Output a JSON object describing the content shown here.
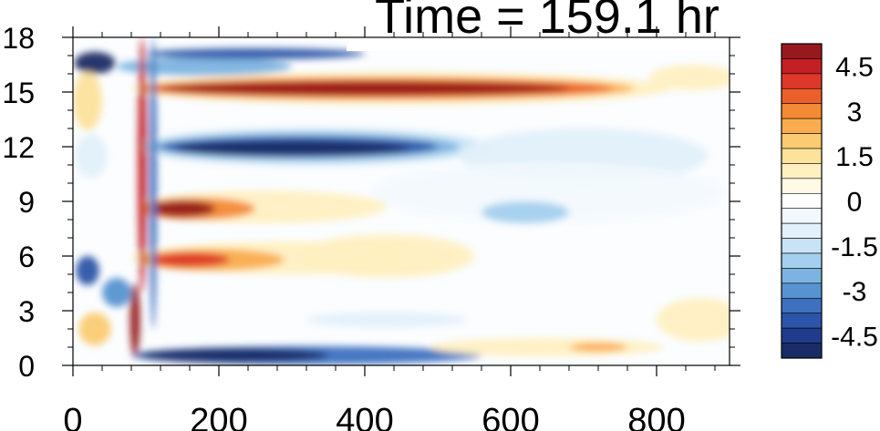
{
  "chart_data": {
    "type": "heatmap",
    "title": "Time = 159.1 hr",
    "xlabel": "",
    "ylabel": "",
    "xlim": [
      0,
      900
    ],
    "ylim": [
      0,
      18
    ],
    "x_ticks": [
      0,
      200,
      400,
      600,
      800
    ],
    "x_tick_labels": [
      "0",
      "200",
      "400",
      "600",
      "800"
    ],
    "y_ticks": [
      0,
      3,
      6,
      9,
      12,
      15,
      18
    ],
    "y_tick_labels": [
      "0",
      "3",
      "6",
      "9",
      "12",
      "15",
      "18"
    ],
    "grid": false,
    "legend": "right",
    "colorbar": {
      "min": -5.25,
      "max": 5.25,
      "levels": 21,
      "tick_values": [
        4.5,
        3,
        1.5,
        0,
        -1.5,
        -3,
        -4.5
      ],
      "tick_labels": [
        "4.5",
        "3",
        "1.5",
        "0",
        "-1.5",
        "-3",
        "-4.5"
      ],
      "colors": [
        "#1a2b66",
        "#203c8c",
        "#2c55a8",
        "#3d70bf",
        "#5793d0",
        "#7cb3e0",
        "#a3d0ee",
        "#c7e3f5",
        "#e1f0fa",
        "#f2f9fd",
        "#ffffff",
        "#fff9e6",
        "#fff0c2",
        "#fde29c",
        "#fbcb72",
        "#f9ad4e",
        "#f48a36",
        "#ec5f2c",
        "#dd3829",
        "#c31f25",
        "#961a1d"
      ]
    },
    "features": [
      {
        "name": "positive band near 15",
        "x0": 100,
        "x1": 800,
        "y": 15.2,
        "peak": 5.0
      },
      {
        "name": "negative band near 12",
        "x0": 100,
        "x1": 600,
        "y": 12.0,
        "peak": -5.0
      },
      {
        "name": "positive band near 9",
        "x0": 90,
        "x1": 420,
        "y": 8.6,
        "peak": 4.5
      },
      {
        "name": "positive band near 6",
        "x0": 90,
        "x1": 520,
        "y": 5.8,
        "peak": 3.5
      },
      {
        "name": "negative band near 0.5",
        "x0": 80,
        "x1": 560,
        "y": 0.6,
        "peak": -5.0
      }
    ]
  }
}
